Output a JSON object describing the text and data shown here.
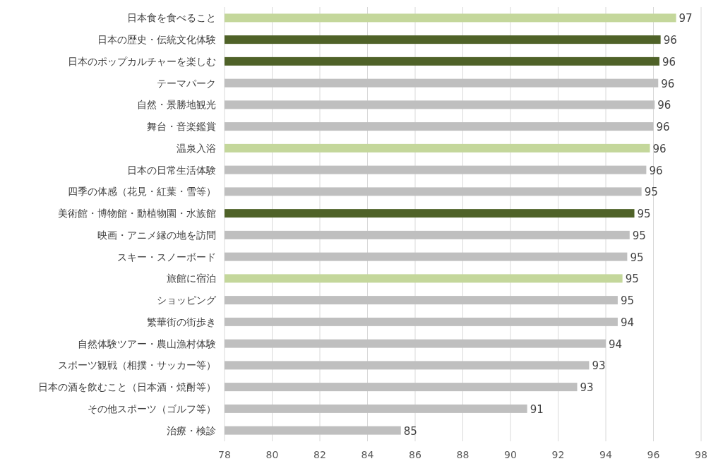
{
  "chart_data": {
    "type": "bar",
    "orientation": "horizontal",
    "categories": [
      "日本食を食べること",
      "日本の歴史・伝統文化体験",
      "日本のポップカルチャーを楽しむ",
      "テーマパーク",
      "自然・景勝地観光",
      "舞台・音楽鑑賞",
      "温泉入浴",
      "日本の日常生活体験",
      "四季の体感（花見・紅葉・雪等）",
      "美術館・博物館・動植物園・水族館",
      "映画・アニメ縁の地を訪問",
      "スキー・スノーボード",
      "旅館に宿泊",
      "ショッピング",
      "繁華街の街歩き",
      "自然体験ツアー・農山漁村体験",
      "スポーツ観戦（相撲・サッカー等）",
      "日本の酒を飲むこと（日本酒・焼酎等）",
      "その他スポーツ（ゴルフ等）",
      "治療・検診"
    ],
    "values": [
      96.95,
      96.3,
      96.25,
      96.2,
      96.05,
      96.0,
      95.85,
      95.7,
      95.5,
      95.2,
      95.0,
      94.9,
      94.7,
      94.5,
      94.5,
      94.0,
      93.3,
      92.8,
      90.7,
      85.4
    ],
    "value_labels": [
      "97",
      "96",
      "96",
      "96",
      "96",
      "96",
      "96",
      "96",
      "95",
      "95",
      "95",
      "95",
      "95",
      "95",
      "94",
      "94",
      "93",
      "93",
      "91",
      "85"
    ],
    "colors": [
      "#c4d79b",
      "#4f6228",
      "#4f6228",
      "#bfbfbf",
      "#bfbfbf",
      "#bfbfbf",
      "#c4d79b",
      "#bfbfbf",
      "#bfbfbf",
      "#4f6228",
      "#bfbfbf",
      "#bfbfbf",
      "#c4d79b",
      "#bfbfbf",
      "#bfbfbf",
      "#bfbfbf",
      "#bfbfbf",
      "#bfbfbf",
      "#bfbfbf",
      "#bfbfbf"
    ],
    "xlim": [
      78,
      98
    ],
    "xticks": [
      78,
      80,
      82,
      84,
      86,
      88,
      90,
      92,
      94,
      96,
      98
    ],
    "grid": "x"
  }
}
